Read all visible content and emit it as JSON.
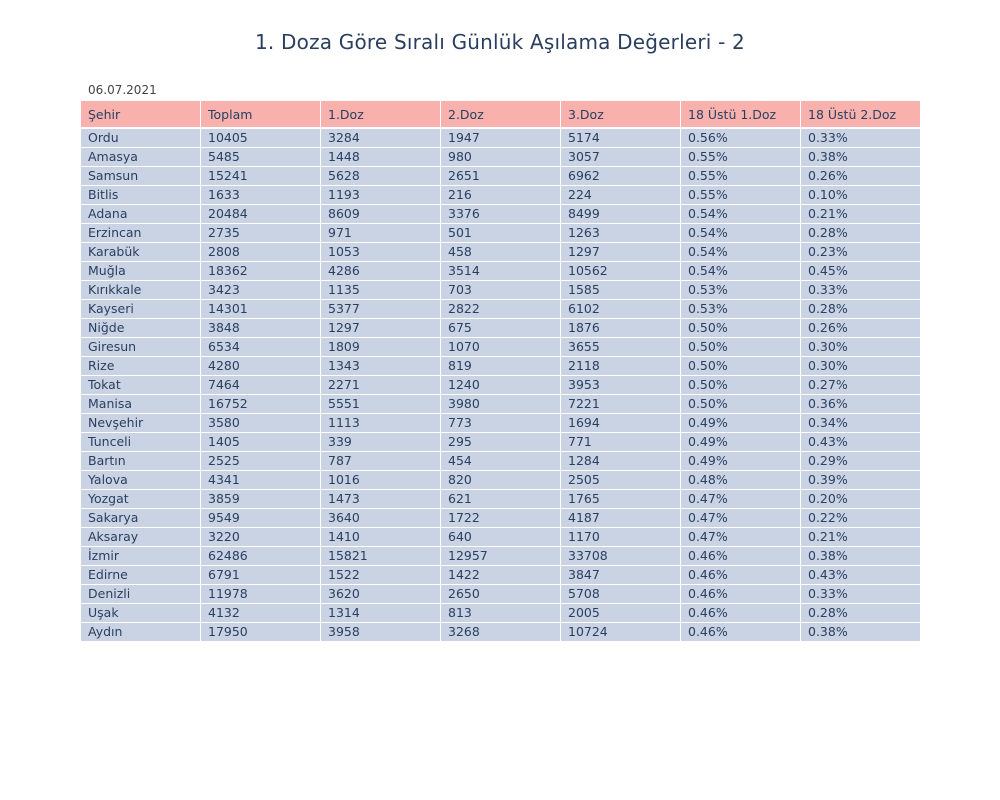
{
  "chart_data": {
    "type": "table",
    "title": "1. Doza Göre Sıralı Günlük Aşılama Değerleri - 2",
    "date": "06.07.2021",
    "columns": [
      "Şehir",
      "Toplam",
      "1.Doz",
      "2.Doz",
      "3.Doz",
      "18 Üstü 1.Doz",
      "18 Üstü 2.Doz"
    ],
    "rows": [
      [
        "Ordu",
        "10405",
        "3284",
        "1947",
        "5174",
        "0.56%",
        "0.33%"
      ],
      [
        "Amasya",
        "5485",
        "1448",
        "980",
        "3057",
        "0.55%",
        "0.38%"
      ],
      [
        "Samsun",
        "15241",
        "5628",
        "2651",
        "6962",
        "0.55%",
        "0.26%"
      ],
      [
        "Bitlis",
        "1633",
        "1193",
        "216",
        "224",
        "0.55%",
        "0.10%"
      ],
      [
        "Adana",
        "20484",
        "8609",
        "3376",
        "8499",
        "0.54%",
        "0.21%"
      ],
      [
        "Erzincan",
        "2735",
        "971",
        "501",
        "1263",
        "0.54%",
        "0.28%"
      ],
      [
        "Karabük",
        "2808",
        "1053",
        "458",
        "1297",
        "0.54%",
        "0.23%"
      ],
      [
        "Muğla",
        "18362",
        "4286",
        "3514",
        "10562",
        "0.54%",
        "0.45%"
      ],
      [
        "Kırıkkale",
        "3423",
        "1135",
        "703",
        "1585",
        "0.53%",
        "0.33%"
      ],
      [
        "Kayseri",
        "14301",
        "5377",
        "2822",
        "6102",
        "0.53%",
        "0.28%"
      ],
      [
        "Niğde",
        "3848",
        "1297",
        "675",
        "1876",
        "0.50%",
        "0.26%"
      ],
      [
        "Giresun",
        "6534",
        "1809",
        "1070",
        "3655",
        "0.50%",
        "0.30%"
      ],
      [
        "Rize",
        "4280",
        "1343",
        "819",
        "2118",
        "0.50%",
        "0.30%"
      ],
      [
        "Tokat",
        "7464",
        "2271",
        "1240",
        "3953",
        "0.50%",
        "0.27%"
      ],
      [
        "Manisa",
        "16752",
        "5551",
        "3980",
        "7221",
        "0.50%",
        "0.36%"
      ],
      [
        "Nevşehir",
        "3580",
        "1113",
        "773",
        "1694",
        "0.49%",
        "0.34%"
      ],
      [
        "Tunceli",
        "1405",
        "339",
        "295",
        "771",
        "0.49%",
        "0.43%"
      ],
      [
        "Bartın",
        "2525",
        "787",
        "454",
        "1284",
        "0.49%",
        "0.29%"
      ],
      [
        "Yalova",
        "4341",
        "1016",
        "820",
        "2505",
        "0.48%",
        "0.39%"
      ],
      [
        "Yozgat",
        "3859",
        "1473",
        "621",
        "1765",
        "0.47%",
        "0.20%"
      ],
      [
        "Sakarya",
        "9549",
        "3640",
        "1722",
        "4187",
        "0.47%",
        "0.22%"
      ],
      [
        "Aksaray",
        "3220",
        "1410",
        "640",
        "1170",
        "0.47%",
        "0.21%"
      ],
      [
        "İzmir",
        "62486",
        "15821",
        "12957",
        "33708",
        "0.46%",
        "0.38%"
      ],
      [
        "Edirne",
        "6791",
        "1522",
        "1422",
        "3847",
        "0.46%",
        "0.43%"
      ],
      [
        "Denizli",
        "11978",
        "3620",
        "2650",
        "5708",
        "0.46%",
        "0.33%"
      ],
      [
        "Uşak",
        "4132",
        "1314",
        "813",
        "2005",
        "0.46%",
        "0.28%"
      ],
      [
        "Aydın",
        "17950",
        "3958",
        "3268",
        "10724",
        "0.46%",
        "0.38%"
      ]
    ],
    "colors": {
      "header_fill": "#f8b1ad",
      "cell_fill": "#c9d3e3",
      "text": "#2a3f5f"
    }
  }
}
